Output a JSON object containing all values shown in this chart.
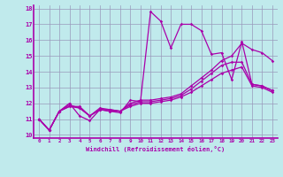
{
  "xlabel": "Windchill (Refroidissement éolien,°C)",
  "xlim": [
    -0.5,
    23.5
  ],
  "ylim": [
    9.8,
    18.2
  ],
  "xticks": [
    0,
    1,
    2,
    3,
    4,
    5,
    6,
    7,
    8,
    9,
    10,
    11,
    12,
    13,
    14,
    15,
    16,
    17,
    18,
    19,
    20,
    21,
    22,
    23
  ],
  "yticks": [
    10,
    11,
    12,
    13,
    14,
    15,
    16,
    17,
    18
  ],
  "bg_color": "#c0eaec",
  "line_color": "#aa00aa",
  "grid_color": "#9999bb",
  "lines": [
    [
      11.0,
      10.3,
      11.5,
      12.0,
      11.2,
      10.9,
      11.6,
      11.5,
      11.4,
      12.2,
      12.1,
      17.8,
      17.2,
      15.5,
      17.0,
      17.0,
      16.6,
      15.1,
      15.2,
      13.5,
      15.9,
      13.2,
      13.1,
      12.8
    ],
    [
      11.0,
      10.3,
      11.5,
      11.9,
      11.7,
      11.2,
      11.7,
      11.6,
      11.5,
      12.0,
      12.2,
      12.2,
      12.3,
      12.4,
      12.6,
      13.1,
      13.6,
      14.1,
      14.7,
      15.0,
      15.8,
      15.4,
      15.2,
      14.7
    ],
    [
      11.0,
      10.3,
      11.5,
      11.8,
      11.7,
      11.2,
      11.6,
      11.6,
      11.5,
      11.9,
      12.1,
      12.1,
      12.2,
      12.3,
      12.5,
      12.9,
      13.4,
      13.9,
      14.4,
      14.6,
      14.6,
      13.2,
      13.1,
      12.8
    ],
    [
      11.0,
      10.3,
      11.5,
      11.8,
      11.8,
      11.2,
      11.6,
      11.5,
      11.5,
      11.8,
      12.0,
      12.0,
      12.1,
      12.2,
      12.4,
      12.7,
      13.1,
      13.5,
      13.9,
      14.1,
      14.3,
      13.1,
      13.0,
      12.7
    ]
  ]
}
